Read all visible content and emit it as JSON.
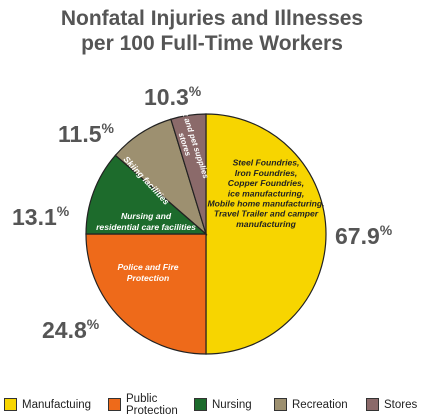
{
  "chart_data": {
    "type": "pie",
    "title": "Nonfatal Injuries and Illnesses per 100 Full-Time Workers",
    "slices": [
      {
        "legend": "Manufactuing",
        "value": 67.9,
        "pct_label": "67.9%",
        "label_lines": [
          "Steel Foundries,",
          "Iron Foundries,",
          "Copper Foundries,",
          "ice manufacturing,",
          "Mobile home manufacturing,",
          "Travel Trailer and camper",
          "manufacturing"
        ],
        "color": "#f7d500",
        "text_color": "#222222"
      },
      {
        "legend": "Public Protection",
        "value": 24.8,
        "pct_label": "24.8%",
        "label_lines": [
          "Police and Fire",
          "Protection"
        ],
        "color": "#ee6a1a",
        "text_color": "#ffffff"
      },
      {
        "legend": "Nursing",
        "value": 13.1,
        "pct_label": "13.1%",
        "label_lines": [
          "Nursing and",
          "residential care facilities"
        ],
        "color": "#1d6b2c",
        "text_color": "#ffffff"
      },
      {
        "legend": "Recreation",
        "value": 11.5,
        "pct_label": "11.5%",
        "label_lines": [
          "Skiing facilities"
        ],
        "color": "#9d9070",
        "text_color": "#ffffff"
      },
      {
        "legend": "Stores",
        "value": 10.3,
        "pct_label": "10.3%",
        "label_lines": [
          "Pet and pet supplies",
          "stores"
        ],
        "color": "#8b6a6a",
        "text_color": "#ffffff"
      }
    ],
    "legend_position": "bottom"
  }
}
